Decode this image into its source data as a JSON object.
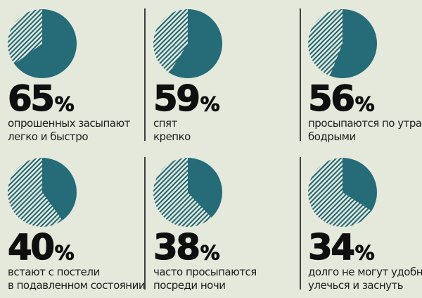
{
  "colors": {
    "background": "#e5e9dc",
    "teal": "#256b78",
    "number_ink": "#0f0f0f",
    "caption_text": "#1c1c1c",
    "divider": "#3e3e3e"
  },
  "stats": [
    {
      "value": "65",
      "unit": "%",
      "desc_line1": "опрошенных засыпают",
      "desc_line2": "легко и быстро"
    },
    {
      "value": "59",
      "unit": "%",
      "desc_line1": "спят",
      "desc_line2": "крепко"
    },
    {
      "value": "56",
      "unit": "%",
      "desc_line1": "просыпаются по утрам",
      "desc_line2": "бодрыми"
    },
    {
      "value": "40",
      "unit": "%",
      "desc_line1": "встают с постели",
      "desc_line2": "в подавленном состоянии"
    },
    {
      "value": "38",
      "unit": "%",
      "desc_line1": "часто просыпаются",
      "desc_line2": "посреди ночи"
    },
    {
      "value": "34",
      "unit": "%",
      "desc_line1": "долго не могут удобно",
      "desc_line2": "улечься и заснуть"
    }
  ],
  "chart_data": [
    {
      "type": "pie",
      "title": "65% опрошенных засыпают легко и быстро",
      "values": [
        65,
        35
      ],
      "segment_styles": [
        "solid-teal",
        "diagonal-hatch"
      ],
      "start_angle_deg": 0,
      "direction": "clockwise",
      "legend": "none"
    },
    {
      "type": "pie",
      "title": "59% спят крепко",
      "values": [
        59,
        41
      ],
      "segment_styles": [
        "solid-teal",
        "diagonal-hatch"
      ],
      "start_angle_deg": 0,
      "direction": "clockwise",
      "legend": "none"
    },
    {
      "type": "pie",
      "title": "56% просыпаются по утрам бодрыми",
      "values": [
        56,
        44
      ],
      "segment_styles": [
        "solid-teal",
        "diagonal-hatch"
      ],
      "start_angle_deg": 0,
      "direction": "clockwise",
      "legend": "none"
    },
    {
      "type": "pie",
      "title": "40% встают с постели в подавленном состоянии",
      "values": [
        40,
        60
      ],
      "segment_styles": [
        "solid-teal",
        "diagonal-hatch"
      ],
      "start_angle_deg": 0,
      "direction": "clockwise",
      "legend": "none"
    },
    {
      "type": "pie",
      "title": "38% часто просыпаются посреди ночи",
      "values": [
        38,
        62
      ],
      "segment_styles": [
        "solid-teal",
        "diagonal-hatch"
      ],
      "start_angle_deg": 0,
      "direction": "clockwise",
      "legend": "none"
    },
    {
      "type": "pie",
      "title": "34% долго не могут удобно улечься и заснуть",
      "values": [
        34,
        66
      ],
      "segment_styles": [
        "solid-teal",
        "diagonal-hatch"
      ],
      "start_angle_deg": 0,
      "direction": "clockwise",
      "legend": "none"
    }
  ]
}
